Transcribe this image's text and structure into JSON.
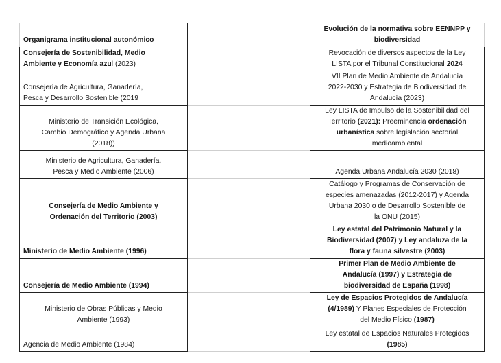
{
  "table": {
    "rows": [
      {
        "align": "left",
        "col1": [
          [
            {
              "t": "Organigrama institucional autonómico",
              "b": true
            }
          ]
        ],
        "col3": [
          [
            {
              "t": "Evolución de la normativa sobre EENNPP y",
              "b": true
            }
          ],
          [
            {
              "t": "biodiversidad",
              "b": true
            }
          ]
        ]
      },
      {
        "align": "left",
        "col1": [
          [
            {
              "t": "Consejería de Sostenibilidad, Medio",
              "b": true
            }
          ],
          [
            {
              "t": "Ambiente y Economía azu",
              "b": true
            },
            {
              "t": "l (2023)",
              "b": false
            }
          ]
        ],
        "col3": [
          [
            {
              "t": "Revocación de diversos aspectos de la Ley",
              "b": false
            }
          ],
          [
            {
              "t": "LISTA  por el Tribunal Constitucional ",
              "b": false
            },
            {
              "t": "2024",
              "b": true
            }
          ]
        ]
      },
      {
        "align": "left",
        "col1": [
          [
            {
              "t": "Consejería de Agricultura, Ganadería,",
              "b": false
            }
          ],
          [
            {
              "t": "Pesca y Desarrollo Sostenible (2019",
              "b": false
            }
          ]
        ],
        "col3": [
          [
            {
              "t": "VII Plan de Medio Ambiente de Andalucía",
              "b": false
            }
          ],
          [
            {
              "t": "2022-2030 y Estrategia de Biodiversidad de",
              "b": false
            }
          ],
          [
            {
              "t": "Andalucía (2023)",
              "b": false
            }
          ]
        ]
      },
      {
        "align": "center",
        "col1": [
          [
            {
              "t": "Ministerio de Transición Ecológica,",
              "b": false
            }
          ],
          [
            {
              "t": "Cambio Demográfico y Agenda Urbana",
              "b": false
            }
          ],
          [
            {
              "t": "(2018))",
              "b": false
            }
          ]
        ],
        "col3": [
          [
            {
              "t": "Ley LISTA de Impulso de la Sostenibilidad del",
              "b": false
            }
          ],
          [
            {
              "t": "Territorio ",
              "b": false
            },
            {
              "t": "(2021):",
              "b": true
            },
            {
              "t": " Preeminencia ",
              "b": false
            },
            {
              "t": "ordenación",
              "b": true
            }
          ],
          [
            {
              "t": "urbanística",
              "b": true
            },
            {
              "t": " sobre legislación sectorial",
              "b": false
            }
          ],
          [
            {
              "t": "medioambiental",
              "b": false
            }
          ]
        ]
      },
      {
        "align": "center",
        "col1": [
          [
            {
              "t": "Ministerio de Agricultura, Ganadería,",
              "b": false
            }
          ],
          [
            {
              "t": "Pesca y Medio Ambiente (2006)",
              "b": false
            }
          ]
        ],
        "col3": [
          [
            {
              "t": "Agenda Urbana Andalucía 2030 (2018)",
              "b": false
            }
          ]
        ]
      },
      {
        "align": "center",
        "col1": [
          [
            {
              "t": "Consejería de Medio Ambiente y",
              "b": true
            }
          ],
          [
            {
              "t": "Ordenación del Territorio (2003)",
              "b": true
            }
          ]
        ],
        "col3": [
          [
            {
              "t": "Catálogo y Programas de Conservación de",
              "b": false
            }
          ],
          [
            {
              "t": "especies amenazadas (2012-2017) y Agenda",
              "b": false
            }
          ],
          [
            {
              "t": "Urbana 2030 o de Desarrollo Sostenible de",
              "b": false
            }
          ],
          [
            {
              "t": "la ONU (2015)",
              "b": false
            }
          ]
        ]
      },
      {
        "align": "left",
        "col1": [
          [
            {
              "t": "Ministerio de Medio Ambiente (1996)",
              "b": true
            }
          ]
        ],
        "col3": [
          [
            {
              "t": "Ley estatal del Patrimonio Natural y la",
              "b": true
            }
          ],
          [
            {
              "t": "Biodiversidad  (2007) y Ley andaluza de la",
              "b": true
            }
          ],
          [
            {
              "t": "flora y fauna silvestre (2003)",
              "b": true
            }
          ]
        ]
      },
      {
        "align": "left",
        "col1": [
          [
            {
              "t": "Consejería de Medio Ambiente (1994)",
              "b": true
            }
          ]
        ],
        "col3": [
          [
            {
              "t": "Primer Plan de Medio Ambiente de",
              "b": true
            }
          ],
          [
            {
              "t": "Andalucía (1997)  y Estrategia de",
              "b": true
            }
          ],
          [
            {
              "t": "biodiversidad de España (1998)",
              "b": true
            }
          ]
        ]
      },
      {
        "align": "center",
        "col1": [
          [
            {
              "t": "Ministerio de Obras Públicas y Medio",
              "b": false
            }
          ],
          [
            {
              "t": "Ambiente (1993)",
              "b": false
            }
          ]
        ],
        "col3": [
          [
            {
              "t": "Ley de Espacios Protegidos de Andalucía",
              "b": true
            }
          ],
          [
            {
              "t": "(4/1989)",
              "b": true
            },
            {
              "t": "  Y Planes Especiales de Protección",
              "b": false
            }
          ],
          [
            {
              "t": "del Medio Físico ",
              "b": false
            },
            {
              "t": "(1987)",
              "b": true
            }
          ]
        ]
      },
      {
        "align": "left",
        "col1": [
          [
            {
              "t": "Agencia de Medio Ambiente (1984)",
              "b": false
            }
          ]
        ],
        "col3": [
          [
            {
              "t": "Ley estatal de Espacios Naturales Protegidos",
              "b": false
            }
          ],
          [
            {
              "t": "(1985)",
              "b": true
            }
          ]
        ]
      }
    ]
  }
}
